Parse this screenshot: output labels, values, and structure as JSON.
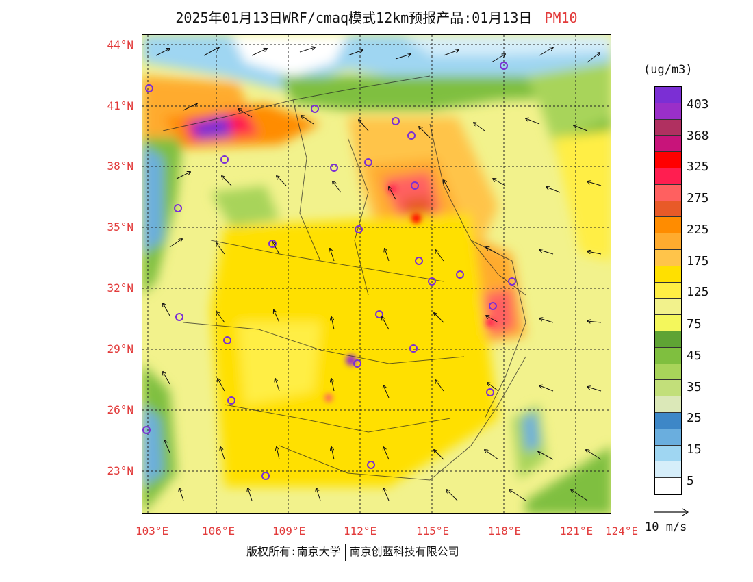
{
  "title": {
    "main": "2025年01月13日WRF/cmaq模式12km预报产品:01月13日",
    "species": "PM10"
  },
  "lat_labels": [
    "44°N",
    "41°N",
    "38°N",
    "35°N",
    "32°N",
    "29°N",
    "26°N",
    "23°N"
  ],
  "lon_labels": [
    "103°E",
    "106°E",
    "109°E",
    "112°E",
    "115°E",
    "118°E",
    "121°E",
    "124°E"
  ],
  "colorbar": {
    "unit": "(ug/m3)",
    "labels": [
      "403",
      "368",
      "325",
      "275",
      "225",
      "175",
      "125",
      "75",
      "45",
      "35",
      "25",
      "15",
      "5"
    ],
    "colors": [
      "#7b2fd4",
      "#9a2fc8",
      "#b03060",
      "#c8147a",
      "#ff0000",
      "#ff1e50",
      "#ff6060",
      "#e85a28",
      "#ff8c00",
      "#ffab2e",
      "#ffc44a",
      "#ffe000",
      "#ffee44",
      "#f2f28c",
      "#f4f75c",
      "#5fa334",
      "#7fbf3f",
      "#a8d45a",
      "#c2df7a",
      "#dbe8b8",
      "#3d87c7",
      "#6aaede",
      "#9fd6f2",
      "#d6eefa",
      "#ffffff"
    ]
  },
  "wind_key": {
    "label": "10 m/s"
  },
  "footer": {
    "left": "版权所有:南京大学",
    "right": "南京创蓝科技有限公司"
  },
  "colors": {
    "axis_labels": "#e23b3b",
    "yellow_base": "#f2f28c"
  }
}
